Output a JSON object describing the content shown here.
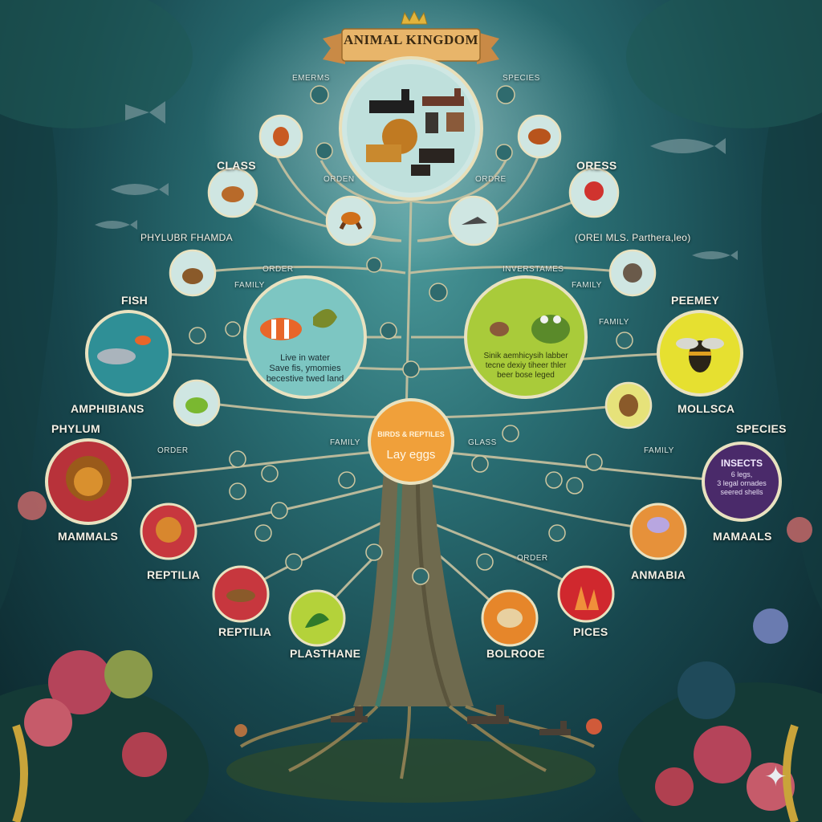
{
  "banner": {
    "title": "ANIMAL KINGDOM"
  },
  "labels": {
    "emerms": "EMERMS",
    "species_top": "SPECIES",
    "class": "CLASS",
    "orden": "ORDEN",
    "ordre": "ORDRE",
    "oress": "ORESS",
    "phylubr": "PHYLUBR FHAMDA",
    "orei": "(OREI MLS. Parthera,leo)",
    "order_left": "ORDER",
    "family_left": "FAMILY",
    "inverstames": "INVERSTAMES",
    "family_right": "FAMILY",
    "fish": "FISH",
    "peemey": "PEEMEY",
    "family_mid": "FAMILY",
    "amphibians": "AMPHIBIANS",
    "mollsca": "MOLLSCA",
    "phylum": "PHYLUM",
    "species_right": "SPECIES",
    "order_mid": "ORDER",
    "family_center": "FAMILY",
    "glass": "GLASS",
    "family_right2": "FAMILY",
    "mammals": "MAMMALS",
    "mamaals": "MAMAALS",
    "reptilia1": "REPTILIA",
    "anmabia": "ANMABIA",
    "order_low": "ORDER",
    "reptilia2": "REPTILIA",
    "plasthane": "PLASTHANE",
    "bolrooe": "BOLROOE",
    "pices": "PICES"
  },
  "circles": {
    "water": {
      "lines": [
        "Live in water",
        "Save fis, ymomies",
        "becestive twed land"
      ]
    },
    "amphib": {
      "lines": [
        "Sinik aemhicysih labber",
        "tecne dexiy tiheer thler",
        "beer bose leged"
      ]
    },
    "birds": {
      "title": "BIRDS & REPTILES",
      "sub": "Lay eggs"
    },
    "insects": {
      "title": "INSECTS",
      "lines": [
        "6 legs,",
        "3 legal ornades",
        "seered shells"
      ]
    }
  },
  "colors": {
    "branch": "#c9c2a0",
    "trunk": "#6f6a4e",
    "banner": "#e8b56a",
    "crown": "#e2b43c"
  }
}
